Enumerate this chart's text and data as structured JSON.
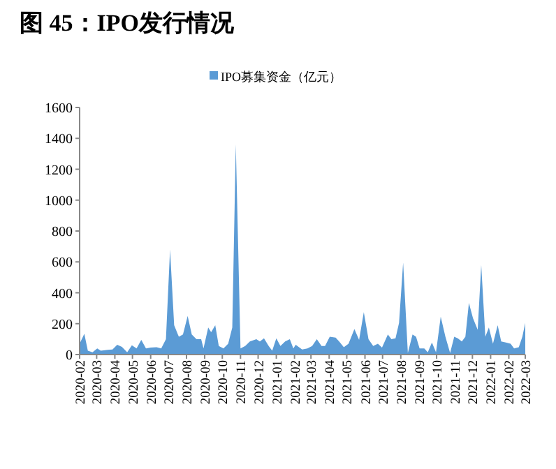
{
  "chart_data": {
    "type": "area",
    "title": "图 45：IPO发行情况",
    "legend": "top",
    "x": [
      "2020-02-01",
      "2020-02-09",
      "2020-02-15",
      "2020-02-23",
      "2020-03-02",
      "2020-03-08",
      "2020-03-20",
      "2020-03-28",
      "2020-04-05",
      "2020-04-13",
      "2020-04-22",
      "2020-04-30",
      "2020-05-08",
      "2020-05-16",
      "2020-05-24",
      "2020-06-01",
      "2020-06-11",
      "2020-06-19",
      "2020-06-27",
      "2020-07-04",
      "2020-07-11",
      "2020-07-19",
      "2020-07-26",
      "2020-08-03",
      "2020-08-10",
      "2020-08-18",
      "2020-08-26",
      "2020-08-30",
      "2020-09-07",
      "2020-09-12",
      "2020-09-19",
      "2020-09-25",
      "2020-10-03",
      "2020-10-11",
      "2020-10-18",
      "2020-10-24",
      "2020-11-01",
      "2020-11-09",
      "2020-11-17",
      "2020-11-28",
      "2020-12-04",
      "2020-12-11",
      "2020-12-19",
      "2020-12-25",
      "2021-01-01",
      "2021-01-08",
      "2021-01-16",
      "2021-01-24",
      "2021-01-30",
      "2021-02-03",
      "2021-02-14",
      "2021-02-23",
      "2021-03-03",
      "2021-03-11",
      "2021-03-19",
      "2021-03-25",
      "2021-04-02",
      "2021-04-12",
      "2021-04-18",
      "2021-04-26",
      "2021-05-04",
      "2021-05-14",
      "2021-05-22",
      "2021-05-30",
      "2021-06-07",
      "2021-06-15",
      "2021-06-23",
      "2021-06-30",
      "2021-07-10",
      "2021-07-16",
      "2021-07-23",
      "2021-07-29",
      "2021-08-05",
      "2021-08-13",
      "2021-08-21",
      "2021-08-27",
      "2021-09-02",
      "2021-09-10",
      "2021-09-16",
      "2021-09-23",
      "2021-09-30",
      "2021-10-08",
      "2021-10-16",
      "2021-10-24",
      "2021-10-31",
      "2021-11-06",
      "2021-11-13",
      "2021-11-19",
      "2021-11-25",
      "2021-12-02",
      "2021-12-10",
      "2021-12-16",
      "2021-12-23",
      "2021-12-29",
      "2022-01-05",
      "2022-01-13",
      "2022-01-19",
      "2022-01-27",
      "2022-02-04",
      "2022-02-10",
      "2022-02-18",
      "2022-02-24",
      "2022-03-01"
    ],
    "series": [
      {
        "name": "IPO募集资金（亿元）",
        "color": "#5b9bd5",
        "values": [
          70,
          135,
          25,
          15,
          40,
          25,
          30,
          33,
          63,
          50,
          15,
          60,
          40,
          95,
          40,
          45,
          48,
          40,
          100,
          680,
          190,
          115,
          130,
          250,
          130,
          100,
          100,
          40,
          175,
          145,
          190,
          55,
          40,
          70,
          175,
          1360,
          40,
          55,
          85,
          100,
          85,
          105,
          55,
          25,
          105,
          55,
          85,
          100,
          40,
          63,
          33,
          40,
          55,
          100,
          55,
          55,
          115,
          110,
          85,
          48,
          70,
          165,
          95,
          275,
          100,
          55,
          70,
          45,
          130,
          100,
          105,
          205,
          595,
          10,
          130,
          115,
          40,
          40,
          15,
          78,
          15,
          245,
          115,
          10,
          115,
          105,
          85,
          115,
          335,
          235,
          160,
          580,
          115,
          175,
          70,
          190,
          85,
          78,
          70,
          40,
          48,
          115,
          205
        ]
      }
    ],
    "xlim": [
      "2020-02-01",
      "2022-03-01"
    ],
    "xticks": [
      "2020-02",
      "2020-03",
      "2020-04",
      "2020-05",
      "2020-06",
      "2020-07",
      "2020-08",
      "2020-09",
      "2020-10",
      "2020-11",
      "2020-12",
      "2021-01",
      "2021-02",
      "2021-03",
      "2021-04",
      "2021-05",
      "2021-06",
      "2021-07",
      "2021-08",
      "2021-09",
      "2021-10",
      "2021-11",
      "2021-12",
      "2022-01",
      "2022-02",
      "2022-03"
    ],
    "ylim": [
      0,
      1600
    ],
    "yticks": [
      0,
      200,
      400,
      600,
      800,
      1000,
      1200,
      1400,
      1600
    ],
    "grid": false
  }
}
